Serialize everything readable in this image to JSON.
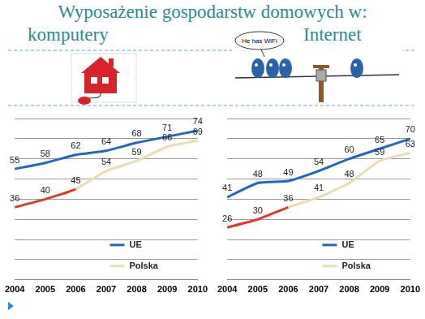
{
  "title": "Wyposażenie gospodarstw domowych w:",
  "chart_data": [
    {
      "type": "line",
      "title": "komputery",
      "categories": [
        "2004",
        "2005",
        "2006",
        "2007",
        "2008",
        "2009",
        "2010"
      ],
      "series": [
        {
          "name": "UE",
          "color": "#2563c4",
          "values": [
            55,
            58,
            62,
            64,
            68,
            71,
            74
          ]
        },
        {
          "name": "Polska",
          "color": "#eadcb4",
          "colors": [
            "#e0392b",
            "#e0392b",
            "#e0392b",
            "#eadcb4",
            "#eadcb4",
            "#eadcb4",
            "#eadcb4"
          ],
          "values": [
            36,
            40,
            45,
            54,
            59,
            66,
            69
          ]
        }
      ],
      "ylim": [
        0,
        80
      ],
      "yticks": [
        0,
        10,
        20,
        30,
        40,
        50,
        60,
        70,
        80
      ],
      "grid": true,
      "legend": "lower right",
      "data_labels": true,
      "tick_labels": "x"
    },
    {
      "type": "line",
      "title": "Internet",
      "annotations": [
        "He has WiFi"
      ],
      "categories": [
        "2004",
        "2005",
        "2006",
        "2007",
        "2008",
        "2009",
        "2010"
      ],
      "series": [
        {
          "name": "UE",
          "color": "#2563c4",
          "values": [
            41,
            48,
            49,
            54,
            60,
            65,
            70
          ]
        },
        {
          "name": "Polska",
          "color": "#eadcb4",
          "colors": [
            "#e0392b",
            "#e0392b",
            "#e0392b",
            "#eadcb4",
            "#eadcb4",
            "#eadcb4",
            "#eadcb4"
          ],
          "values": [
            26,
            30,
            36,
            41,
            48,
            59,
            63
          ]
        }
      ],
      "ylim": [
        0,
        80
      ],
      "yticks": [
        0,
        10,
        20,
        30,
        40,
        50,
        60,
        70,
        80
      ],
      "grid": true,
      "legend": "lower right",
      "data_labels": true,
      "tick_labels": "x"
    }
  ]
}
